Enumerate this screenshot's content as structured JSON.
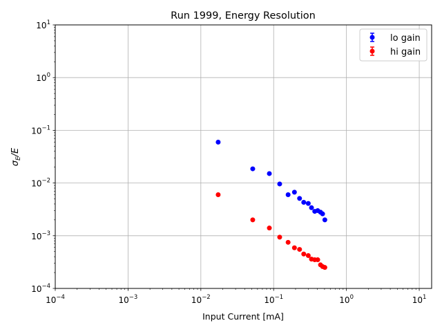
{
  "chart_data": {
    "type": "scatter",
    "title": "Run 1999, Energy Resolution",
    "xlabel": "Input Current [mA]",
    "ylabel": "σ_E/E",
    "xscale": "log",
    "yscale": "log",
    "xlim": [
      0.0001,
      14.8
    ],
    "ylim": [
      0.0001,
      10
    ],
    "grid": true,
    "legend_position": "top-right",
    "x_ticks": [
      {
        "base": "10",
        "exp": "−4",
        "value": 0.0001
      },
      {
        "base": "10",
        "exp": "−3",
        "value": 0.001
      },
      {
        "base": "10",
        "exp": "−2",
        "value": 0.01
      },
      {
        "base": "10",
        "exp": "−1",
        "value": 0.1
      },
      {
        "base": "10",
        "exp": "0",
        "value": 1
      },
      {
        "base": "10",
        "exp": "1",
        "value": 10
      }
    ],
    "y_ticks": [
      {
        "base": "10",
        "exp": "−4",
        "value": 0.0001
      },
      {
        "base": "10",
        "exp": "−3",
        "value": 0.001
      },
      {
        "base": "10",
        "exp": "−2",
        "value": 0.01
      },
      {
        "base": "10",
        "exp": "−1",
        "value": 0.1
      },
      {
        "base": "10",
        "exp": "0",
        "value": 1
      },
      {
        "base": "10",
        "exp": "1",
        "value": 10
      }
    ],
    "x": [
      0.0173,
      0.0516,
      0.0873,
      0.121,
      0.158,
      0.193,
      0.227,
      0.259,
      0.299,
      0.331,
      0.367,
      0.403,
      0.44,
      0.47,
      0.505
    ],
    "series": [
      {
        "name": "lo gain",
        "color": "#0000ff",
        "values": [
          0.0597,
          0.0186,
          0.0151,
          0.0096,
          0.006,
          0.0067,
          0.0051,
          0.0043,
          0.0041,
          0.0034,
          0.0029,
          0.003,
          0.0028,
          0.0026,
          0.002
        ]
      },
      {
        "name": "hi gain",
        "color": "#ff0000",
        "values": [
          0.006,
          0.002,
          0.0014,
          0.00094,
          0.00075,
          0.00059,
          0.00055,
          0.00045,
          0.00042,
          0.00036,
          0.00035,
          0.00035,
          0.00028,
          0.00026,
          0.00025
        ]
      }
    ]
  }
}
